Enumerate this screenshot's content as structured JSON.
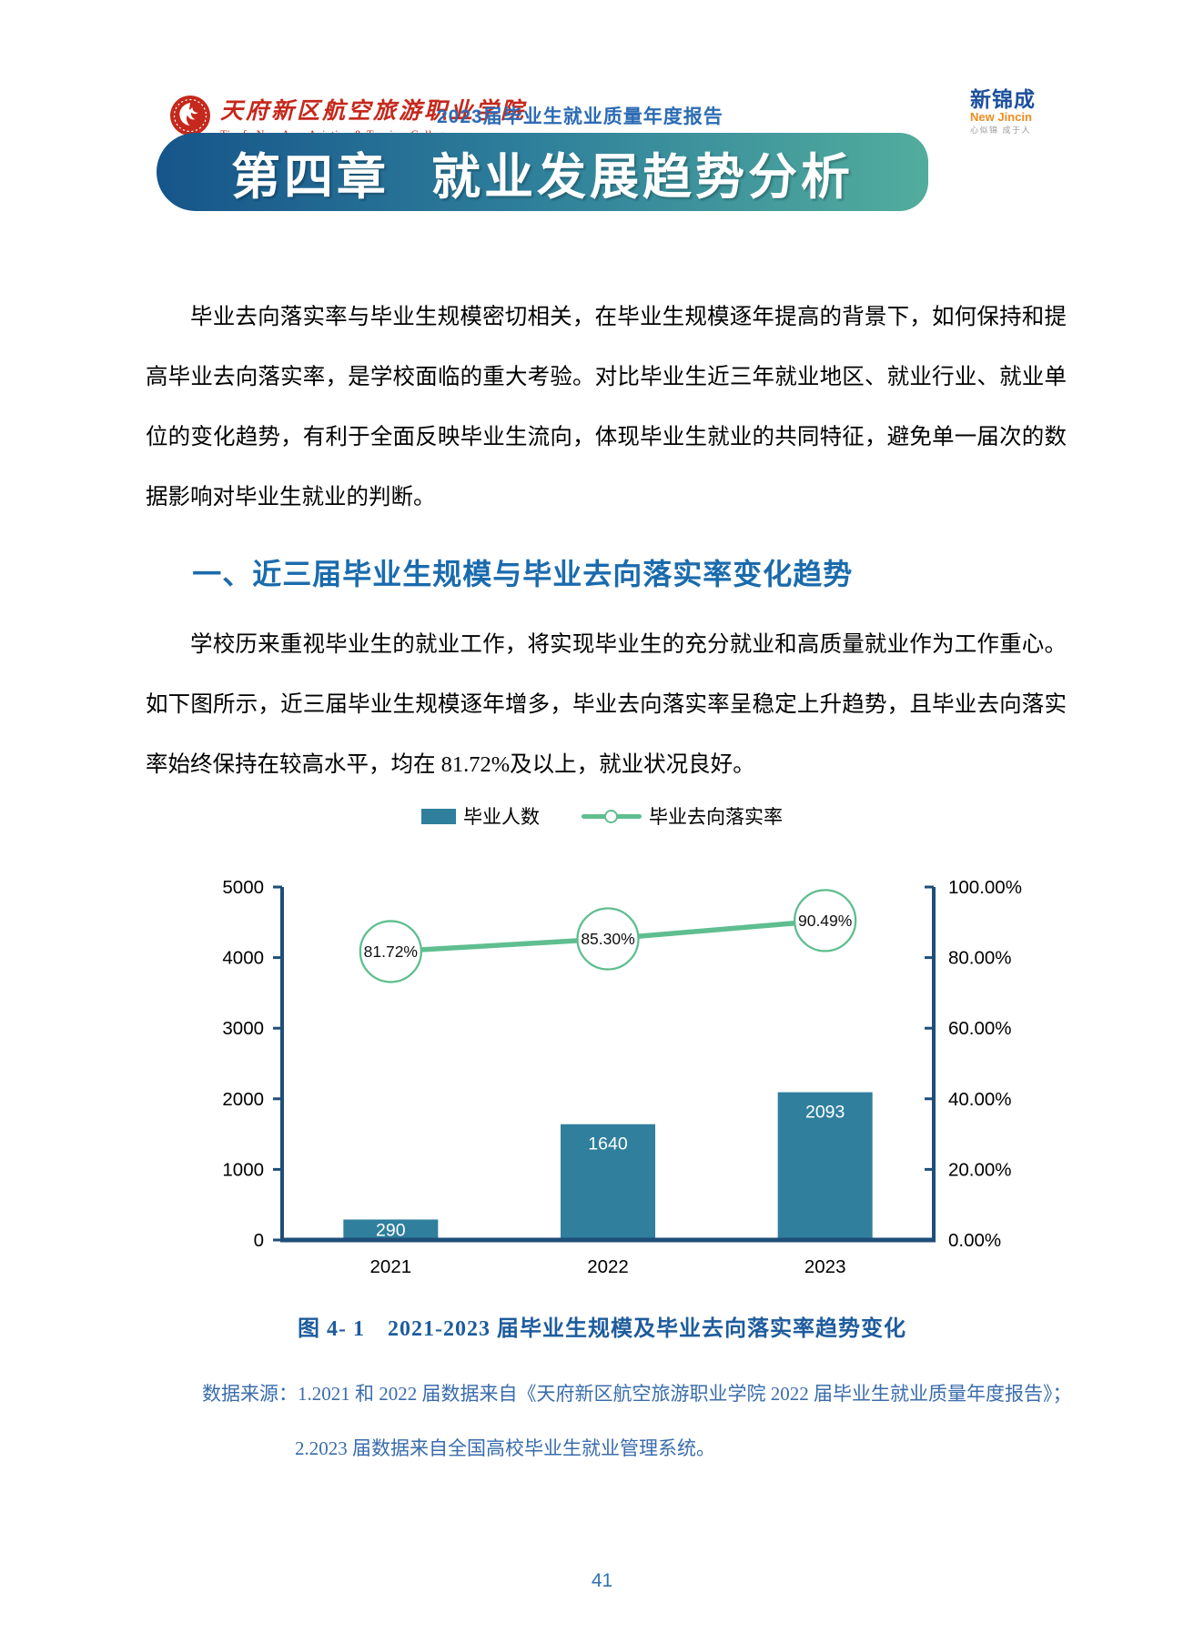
{
  "header": {
    "school": {
      "name_cn": "天府新区航空旅游职业学院",
      "name_en": "Tianfu New Area Aviation & Tourism College"
    },
    "report_title": "2023届毕业生就业质量年度报告",
    "brand": {
      "name_cn": "新锦成",
      "name_en": "New Jincin",
      "tagline": "心似锦 成于人"
    }
  },
  "chapter_banner": {
    "number": "第四章",
    "title": "就业发展趋势分析"
  },
  "body": {
    "paragraph1": "毕业去向落实率与毕业生规模密切相关，在毕业生规模逐年提高的背景下，如何保持和提高毕业去向落实率，是学校面临的重大考验。对比毕业生近三年就业地区、就业行业、就业单位的变化趋势，有利于全面反映毕业生流向，体现毕业生就业的共同特征，避免单一届次的数据影响对毕业生就业的判断。",
    "section1_heading": "一、近三届毕业生规模与毕业去向落实率变化趋势",
    "paragraph2": "学校历来重视毕业生的就业工作，将实现毕业生的充分就业和高质量就业作为工作重心。如下图所示，近三届毕业生规模逐年增多，毕业去向落实率呈稳定上升趋势，且毕业去向落实率始终保持在较高水平，均在 81.72%及以上，就业状况良好。"
  },
  "chart_data": {
    "type": "bar+line combo",
    "categories": [
      "2021",
      "2022",
      "2023"
    ],
    "series": [
      {
        "name": "毕业人数",
        "type": "bar",
        "axis": "left",
        "values": [
          290,
          1640,
          2093
        ],
        "labels": [
          "290",
          "1640",
          "2093"
        ],
        "color": "#2f7f9d"
      },
      {
        "name": "毕业去向落实率",
        "type": "line",
        "axis": "right",
        "values": [
          81.72,
          85.3,
          90.49
        ],
        "labels": [
          "81.72%",
          "85.30%",
          "90.49%"
        ],
        "color": "#5fbe8f"
      }
    ],
    "left_axis": {
      "min": 0,
      "max": 5000,
      "ticks": [
        "5000",
        "4000",
        "3000",
        "2000",
        "1000",
        "0"
      ]
    },
    "right_axis": {
      "min": 0,
      "max": 100,
      "ticks": [
        "100.00%",
        "80.00%",
        "60.00%",
        "40.00%",
        "20.00%",
        "0.00%"
      ]
    },
    "axis_color": "#1f4e79",
    "grid": false,
    "legend_position": "top"
  },
  "figure": {
    "caption": "图 4- 1　2021-2023 届毕业生规模及毕业去向落实率趋势变化"
  },
  "sources": {
    "line1": "数据来源：1.2021 和 2022 届数据来自《天府新区航空旅游职业学院 2022 届毕业生就业质量年度报告》；",
    "line2": "2.2023 届数据来自全国高校毕业生就业管理系统。"
  },
  "footer": {
    "page_number": "41"
  }
}
